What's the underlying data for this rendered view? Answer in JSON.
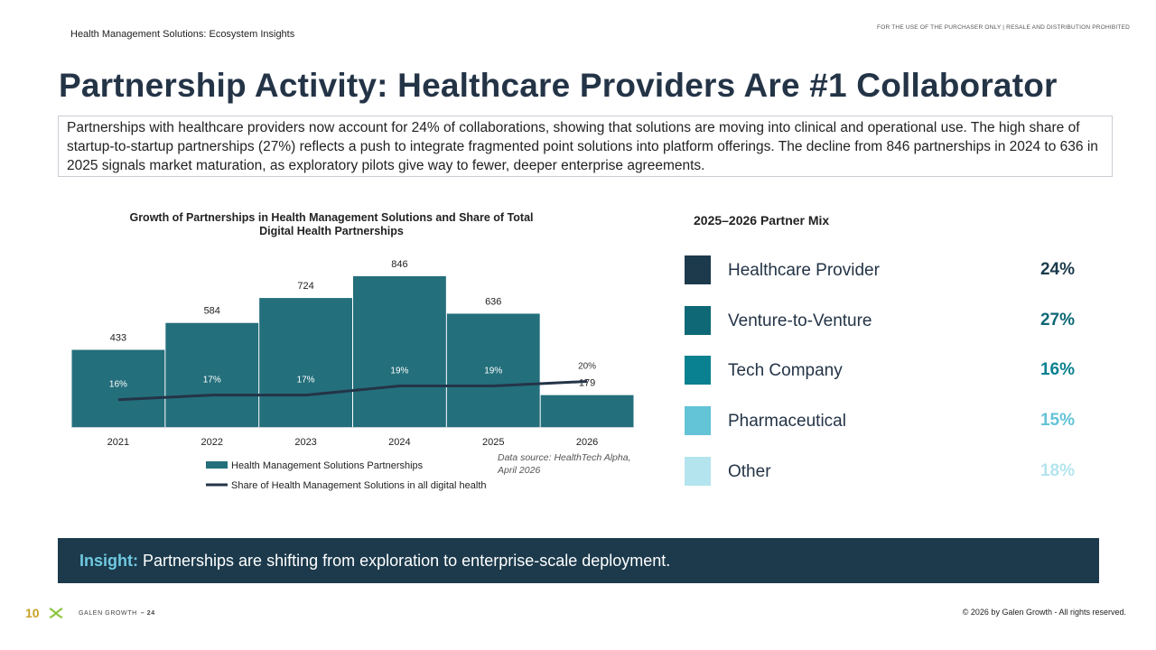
{
  "header": {
    "deck_title": "Health Management Solutions: Ecosystem Insights",
    "notice": "FOR THE USE OF THE PURCHASER ONLY | RESALE AND DISTRIBUTION PROHIBITED"
  },
  "slide": {
    "title": "Partnership Activity: Healthcare Providers Are #1 Collaborator",
    "summary": "Partnerships with healthcare providers now account for 24% of collaborations, showing that solutions are moving into clinical and operational use. The high share of startup-to-startup partnerships (27%) reflects a push to integrate fragmented point solutions into platform offerings. The decline from 846 partnerships in 2024 to 636 in 2025 signals market maturation, as exploratory pilots give way to fewer, deeper enterprise agreements."
  },
  "chart_data": [
    {
      "type": "bar",
      "title_line1": "Growth of Partnerships in Health Management Solutions and Share of Total",
      "title_line2": "Digital Health Partnerships",
      "categories": [
        "2021",
        "2022",
        "2023",
        "2024",
        "2025",
        "2026"
      ],
      "series": [
        {
          "name": "Health Management Solutions Partnerships",
          "kind": "bar",
          "values": [
            433,
            584,
            724,
            846,
            636,
            179
          ],
          "color": "#246f7c"
        },
        {
          "name": "Share of Health Management Solutions in all digital health",
          "kind": "line",
          "values": [
            16,
            17,
            17,
            19,
            19,
            20
          ],
          "labels": [
            "16%",
            "17%",
            "17%",
            "19%",
            "19%",
            "20%"
          ],
          "color": "#243447"
        }
      ],
      "legend_position": "bottom",
      "grid": false,
      "source_note_line1": "Data source: HealthTech Alpha,",
      "source_note_line2": "April 2026"
    },
    {
      "type": "table",
      "title": "2025–2026 Partner Mix",
      "rows": [
        {
          "label": "Healthcare Provider",
          "value": "24%",
          "color": "#1c3a4c"
        },
        {
          "label": "Venture-to-Venture",
          "value": "27%",
          "color": "#0e6876"
        },
        {
          "label": "Tech Company",
          "value": "16%",
          "color": "#0a8190"
        },
        {
          "label": "Pharmaceutical",
          "value": "15%",
          "color": "#63c3d7"
        },
        {
          "label": "Other",
          "value": "18%",
          "color": "#b4e5ee"
        }
      ]
    }
  ],
  "insight": {
    "label": "Insight:",
    "text": " Partnerships are shifting from exploration to enterprise-scale deployment."
  },
  "footer": {
    "badge": "10",
    "brand": "GALEN GROWTH",
    "page": "– 24",
    "copyright": "© 2026 by Galen Growth  - All rights reserved."
  }
}
